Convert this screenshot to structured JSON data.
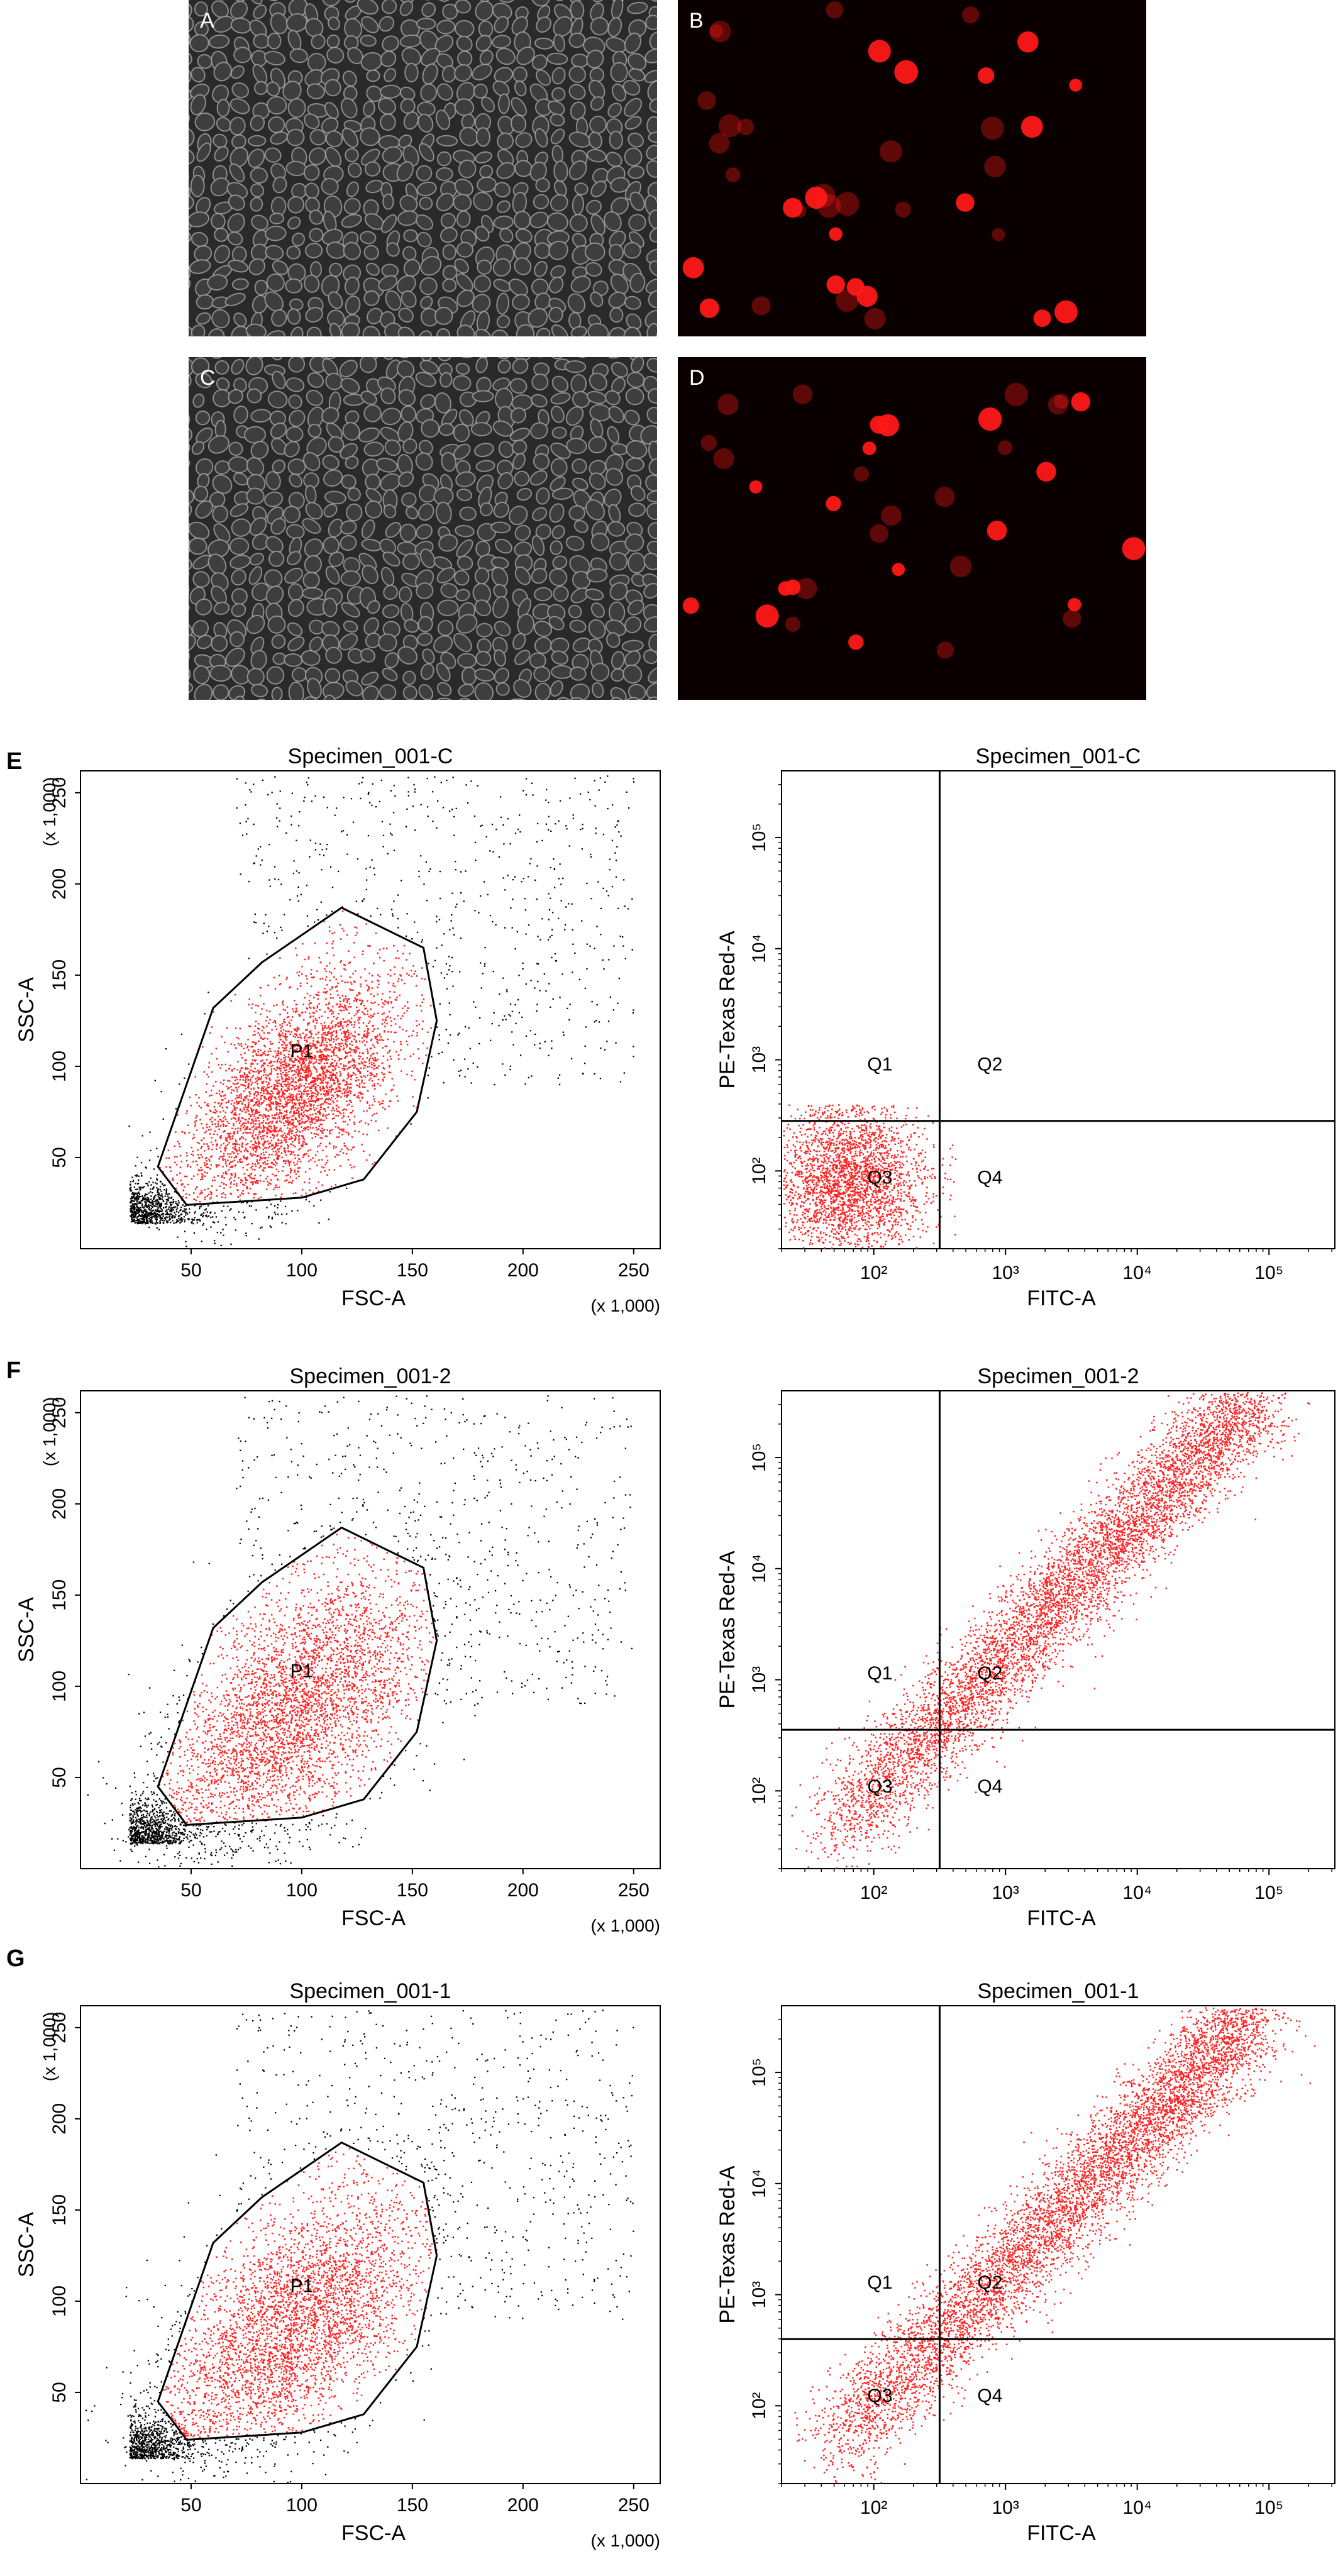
{
  "micrographs": [
    {
      "label": "A",
      "kind": "phase-contrast"
    },
    {
      "label": "B",
      "kind": "fluorescence-red"
    },
    {
      "label": "C",
      "kind": "phase-contrast"
    },
    {
      "label": "D",
      "kind": "fluorescence-red"
    }
  ],
  "colors": {
    "gated": "#ff2020",
    "ungated": "#000000",
    "cell_red": "#ff1818",
    "fluor_bg": "#0a0000",
    "phase_bg": "#2a2a2a"
  },
  "rows": [
    {
      "label": "E"
    },
    {
      "label": "F"
    },
    {
      "label": "G"
    }
  ],
  "chart_data": [
    {
      "type": "scatter",
      "panel": "E-left",
      "title": "Specimen_001-C",
      "xlabel": "FSC-A",
      "ylabel": "SSC-A",
      "x_multiplier": "(x 1,000)",
      "y_multiplier": "(x 1,000)",
      "xlim": [
        0,
        262
      ],
      "ylim": [
        0,
        262
      ],
      "xticks": [
        "50",
        "100",
        "150",
        "200",
        "250"
      ],
      "yticks": [
        "50",
        "100",
        "150",
        "200",
        "250"
      ],
      "gate_label": "P1",
      "gate_polygon": [
        [
          35,
          45
        ],
        [
          60,
          132
        ],
        [
          82,
          157
        ],
        [
          118,
          187
        ],
        [
          155,
          165
        ],
        [
          161,
          125
        ],
        [
          152,
          75
        ],
        [
          128,
          38
        ],
        [
          100,
          28
        ],
        [
          48,
          24
        ]
      ]
    },
    {
      "type": "scatter",
      "panel": "E-right",
      "title": "Specimen_001-C",
      "xlabel": "FITC-A",
      "ylabel": "PE-Texas Red-A",
      "scale": "log",
      "xlim": [
        1.3,
        5.5
      ],
      "ylim": [
        1.3,
        5.6
      ],
      "xticks": [
        "10²",
        "10³",
        "10⁴",
        "10⁵"
      ],
      "yticks": [
        "10²",
        "10³",
        "10⁴",
        "10⁵"
      ],
      "quadrant_x": 2.5,
      "quadrant_y": 2.45,
      "quadrants": [
        "Q1",
        "Q2",
        "Q3",
        "Q4"
      ]
    },
    {
      "type": "scatter",
      "panel": "F-left",
      "title": "Specimen_001-2",
      "xlabel": "FSC-A",
      "ylabel": "SSC-A",
      "x_multiplier": "(x 1,000)",
      "y_multiplier": "(x 1,000)",
      "xlim": [
        0,
        262
      ],
      "ylim": [
        0,
        262
      ],
      "xticks": [
        "50",
        "100",
        "150",
        "200",
        "250"
      ],
      "yticks": [
        "50",
        "100",
        "150",
        "200",
        "250"
      ],
      "gate_label": "P1",
      "gate_polygon": [
        [
          35,
          45
        ],
        [
          60,
          132
        ],
        [
          82,
          157
        ],
        [
          118,
          187
        ],
        [
          155,
          165
        ],
        [
          161,
          125
        ],
        [
          152,
          75
        ],
        [
          128,
          38
        ],
        [
          100,
          28
        ],
        [
          48,
          24
        ]
      ]
    },
    {
      "type": "scatter",
      "panel": "F-right",
      "title": "Specimen_001-2",
      "xlabel": "FITC-A",
      "ylabel": "PE-Texas Red-A",
      "scale": "log",
      "xlim": [
        1.3,
        5.5
      ],
      "ylim": [
        1.3,
        5.6
      ],
      "xticks": [
        "10²",
        "10³",
        "10⁴",
        "10⁵"
      ],
      "yticks": [
        "10²",
        "10³",
        "10⁴",
        "10⁵"
      ],
      "quadrant_x": 2.5,
      "quadrant_y": 2.55,
      "quadrants": [
        "Q1",
        "Q2",
        "Q3",
        "Q4"
      ]
    },
    {
      "type": "scatter",
      "panel": "G-left",
      "title": "Specimen_001-1",
      "xlabel": "FSC-A",
      "ylabel": "SSC-A",
      "x_multiplier": "(x 1,000)",
      "y_multiplier": "(x 1,000)",
      "xlim": [
        0,
        262
      ],
      "ylim": [
        0,
        262
      ],
      "xticks": [
        "50",
        "100",
        "150",
        "200",
        "250"
      ],
      "yticks": [
        "50",
        "100",
        "150",
        "200",
        "250"
      ],
      "gate_label": "P1",
      "gate_polygon": [
        [
          35,
          45
        ],
        [
          60,
          132
        ],
        [
          82,
          157
        ],
        [
          118,
          187
        ],
        [
          155,
          165
        ],
        [
          161,
          125
        ],
        [
          152,
          75
        ],
        [
          128,
          38
        ],
        [
          100,
          28
        ],
        [
          48,
          24
        ]
      ]
    },
    {
      "type": "scatter",
      "panel": "G-right",
      "title": "Specimen_001-1",
      "xlabel": "FITC-A",
      "ylabel": "PE-Texas Red-A",
      "scale": "log",
      "xlim": [
        1.3,
        5.5
      ],
      "ylim": [
        1.3,
        5.6
      ],
      "xticks": [
        "10²",
        "10³",
        "10⁴",
        "10⁵"
      ],
      "yticks": [
        "10²",
        "10³",
        "10⁴",
        "10⁵"
      ],
      "quadrant_x": 2.5,
      "quadrant_y": 2.6,
      "quadrants": [
        "Q1",
        "Q2",
        "Q3",
        "Q4"
      ]
    }
  ]
}
